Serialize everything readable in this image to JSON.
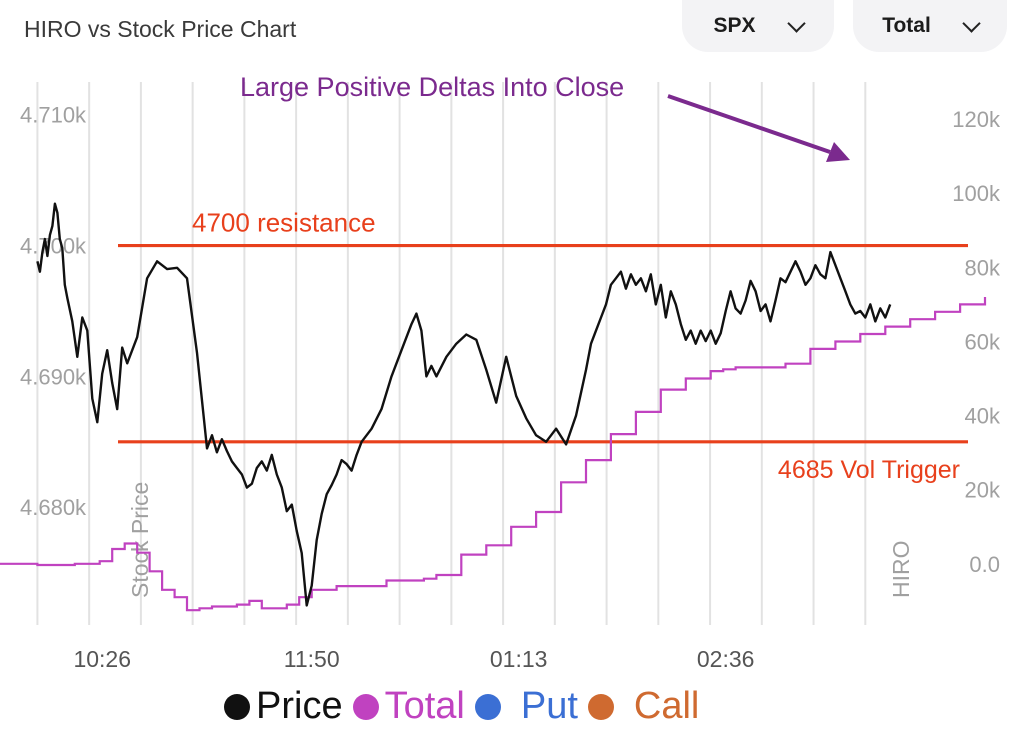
{
  "header": {
    "title": "HIRO vs Stock Price Chart",
    "symbol_select": "SPX",
    "view_select": "Total"
  },
  "colors": {
    "price": "#111111",
    "total": "#c042c0",
    "put": "#3b6fd4",
    "call": "#cf6a30",
    "level_line": "#e8401c",
    "annotation": "#7b2a8e",
    "grid": "#e2e2e2",
    "axis_text": "#a0a0a0"
  },
  "legend": [
    {
      "label": "Price",
      "color": "#111111"
    },
    {
      "label": "Total",
      "color": "#c042c0"
    },
    {
      "label": "Put",
      "color": "#3b6fd4"
    },
    {
      "label": "Call",
      "color": "#cf6a30"
    }
  ],
  "chart_data": {
    "type": "line",
    "title": "HIRO vs Stock Price Chart",
    "x_ticks": [
      "10:26",
      "11:50",
      "01:13",
      "02:36"
    ],
    "x_ticks_minutes": [
      626,
      710,
      793,
      876
    ],
    "x_range_minutes": [
      585,
      980
    ],
    "left_axis": {
      "label": "Stock Price",
      "ticks": [
        "4.710k",
        "4.700k",
        "4.690k",
        "4.680k"
      ],
      "tick_values": [
        4710,
        4700,
        4690,
        4680
      ],
      "range": [
        4671,
        4712.5
      ]
    },
    "right_axis": {
      "label": "HIRO",
      "ticks": [
        "120k",
        "100k",
        "80k",
        "60k",
        "40k",
        "20k",
        "0.0"
      ],
      "tick_values": [
        120000,
        100000,
        80000,
        60000,
        40000,
        20000,
        0
      ],
      "range": [
        -16500,
        130000
      ]
    },
    "series": [
      {
        "name": "Price",
        "axis": "left",
        "x": [
          600,
          601,
          602,
          603,
          604,
          605,
          606,
          607,
          608,
          609,
          610,
          611,
          612,
          614,
          616,
          618,
          620,
          622,
          624,
          626,
          628,
          630,
          632,
          634,
          636,
          640,
          644,
          648,
          652,
          656,
          660,
          664,
          668,
          670,
          672,
          674,
          676,
          678,
          680,
          682,
          684,
          686,
          688,
          690,
          692,
          694,
          696,
          698,
          700,
          702,
          704,
          706,
          708,
          710,
          712,
          714,
          716,
          718,
          720,
          722,
          724,
          726,
          728,
          730,
          734,
          738,
          742,
          746,
          750,
          752,
          754,
          756,
          758,
          760,
          764,
          768,
          772,
          776,
          780,
          784,
          788,
          792,
          796,
          800,
          804,
          808,
          812,
          816,
          820,
          822,
          824,
          826,
          828,
          830,
          832,
          834,
          836,
          838,
          840,
          842,
          844,
          846,
          848,
          850,
          852,
          854,
          856,
          858,
          860,
          862,
          864,
          866,
          868,
          870,
          872,
          874,
          876,
          878,
          880,
          882,
          884,
          886,
          888,
          890,
          892,
          894,
          896,
          898,
          900,
          902,
          904,
          906,
          908,
          910,
          912,
          914,
          916,
          918,
          920,
          922,
          924,
          926,
          928,
          930,
          932,
          934,
          936,
          938,
          940,
          942
        ],
        "y": [
          4698.8,
          4698,
          4699.5,
          4700.5,
          4699.2,
          4700.8,
          4701.5,
          4703.2,
          4702.5,
          4700.5,
          4699.8,
          4697,
          4696,
          4694.2,
          4691.5,
          4694.5,
          4693.5,
          4688.3,
          4686.5,
          4690.2,
          4692,
          4689.5,
          4687.5,
          4692.2,
          4691,
          4693,
          4697.5,
          4698.8,
          4698.2,
          4698.3,
          4697.5,
          4691.8,
          4684.5,
          4685.5,
          4684.2,
          4685.2,
          4684.3,
          4683.5,
          4683,
          4682.5,
          4681.5,
          4681.8,
          4683,
          4683.5,
          4682.8,
          4684,
          4682.5,
          4681.5,
          4679.7,
          4680.2,
          4678.2,
          4676.5,
          4672.5,
          4674,
          4677.5,
          4679.5,
          4681,
          4681.7,
          4682.5,
          4683.6,
          4683.3,
          4682.8,
          4684,
          4685,
          4686,
          4687.5,
          4690,
          4692,
          4694,
          4694.8,
          4693.5,
          4690,
          4690.8,
          4690,
          4691.5,
          4692.5,
          4693.2,
          4692.8,
          4690.5,
          4688,
          4691.5,
          4688.5,
          4686.8,
          4685.5,
          4685,
          4686,
          4684.8,
          4687,
          4690.5,
          4692.5,
          4693.5,
          4694.5,
          4695.5,
          4697,
          4697.5,
          4698,
          4696.7,
          4697.8,
          4697,
          4697.5,
          4696.5,
          4697.8,
          4695.5,
          4697,
          4694.5,
          4696.5,
          4695.5,
          4694,
          4692.8,
          4693.5,
          4692.5,
          4693.5,
          4692.7,
          4693.5,
          4692.5,
          4693.3,
          4695,
          4696.5,
          4695.2,
          4694.8,
          4695.8,
          4697.3,
          4696.5,
          4695,
          4695.5,
          4694.2,
          4695.8,
          4697.5,
          4697.2,
          4698,
          4698.8,
          4698,
          4697,
          4697.5,
          4698.5,
          4697.8,
          4697.5,
          4699.5,
          4698.5,
          4697.5,
          4696.5,
          4695.5,
          4694.8,
          4695,
          4694.5,
          4695.5,
          4694.2,
          4695.2,
          4694.5,
          4695.5
        ]
      },
      {
        "name": "Total",
        "axis": "right",
        "x": [
          585,
          600,
          615,
          625,
          630,
          635,
          640,
          645,
          650,
          655,
          660,
          665,
          670,
          675,
          680,
          685,
          690,
          700,
          705,
          710,
          715,
          720,
          730,
          740,
          745,
          750,
          755,
          760,
          770,
          780,
          790,
          800,
          810,
          820,
          830,
          840,
          850,
          860,
          870,
          875,
          880,
          890,
          900,
          910,
          920,
          930,
          940,
          950,
          960,
          970,
          980
        ],
        "y": [
          0,
          -300,
          0,
          700,
          4000,
          5500,
          3000,
          -2000,
          -7000,
          -9000,
          -12500,
          -12000,
          -11500,
          -11500,
          -11000,
          -10000,
          -12000,
          -11000,
          -9000,
          -7000,
          -7000,
          -6000,
          -6000,
          -4500,
          -4500,
          -4500,
          -4000,
          -3000,
          2500,
          5000,
          10000,
          14000,
          22000,
          28000,
          35000,
          41000,
          47000,
          50000,
          52000,
          52500,
          53000,
          53000,
          54000,
          58000,
          60000,
          62000,
          64000,
          66000,
          68000,
          70000,
          72000
        ]
      }
    ],
    "horizontal_lines": [
      {
        "label": "4700 resistance",
        "value": 4700,
        "axis": "left"
      },
      {
        "label": "4685 Vol Trigger",
        "value": 4685,
        "axis": "left"
      }
    ],
    "annotations": [
      {
        "text": "Large Positive Deltas Into Close"
      }
    ]
  }
}
